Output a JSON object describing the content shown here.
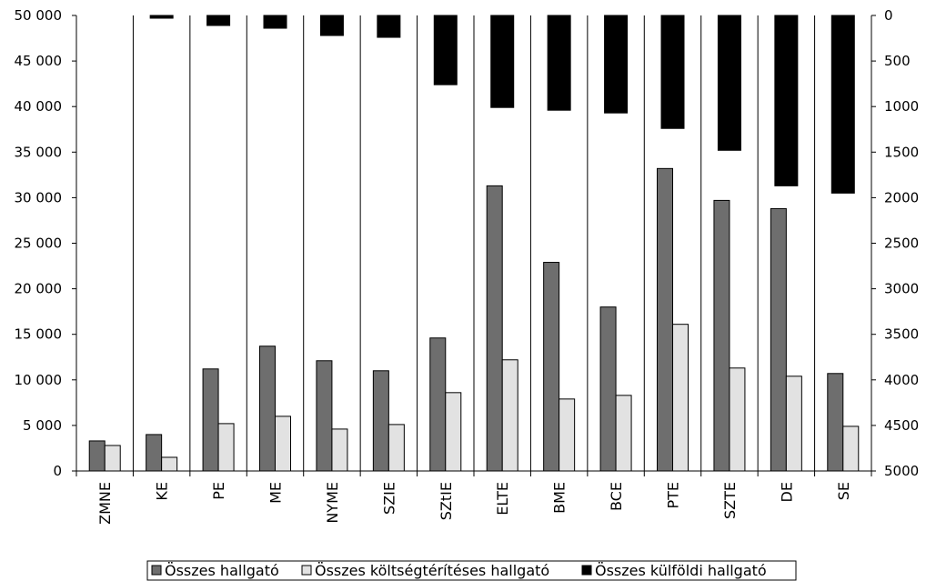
{
  "chart_data": {
    "type": "bar",
    "categories": [
      "ZMNE",
      "KE",
      "PE",
      "ME",
      "NYME",
      "SZIE",
      "SZtIE",
      "ELTE",
      "BME",
      "BCE",
      "PTE",
      "SZTE",
      "DE",
      "SE"
    ],
    "series": [
      {
        "name": "Összes hallgató",
        "axis": "left",
        "color": "#6e6e6e",
        "values": [
          3300,
          4000,
          11200,
          13700,
          12100,
          11000,
          14600,
          31300,
          22900,
          18000,
          33200,
          29700,
          28800,
          10700
        ]
      },
      {
        "name": "Összes költségtérítéses hallgató",
        "axis": "left",
        "color": "#e2e2e2",
        "values": [
          2800,
          1500,
          5200,
          6000,
          4600,
          5100,
          8600,
          12200,
          7900,
          8300,
          16100,
          11300,
          10400,
          4900
        ]
      },
      {
        "name": "Összes külföldi hallgató",
        "axis": "right",
        "color": "#000000",
        "values": [
          0,
          30,
          110,
          140,
          220,
          240,
          760,
          1010,
          1040,
          1070,
          1240,
          1480,
          1870,
          1950
        ]
      }
    ],
    "left_axis": {
      "ylim": [
        0,
        50000
      ],
      "ticks": [
        "0",
        "5 000",
        "10 000",
        "15 000",
        "20 000",
        "25 000",
        "30 000",
        "35 000",
        "40 000",
        "45 000",
        "50 000"
      ]
    },
    "right_axis": {
      "ylim": [
        0,
        5000
      ],
      "inverted": true,
      "ticks": [
        "0",
        "500",
        "1000",
        "1500",
        "2000",
        "2500",
        "3000",
        "3500",
        "4000",
        "4500",
        "5000"
      ]
    },
    "grid": "vertical-between-categories",
    "legend_position": "bottom"
  }
}
